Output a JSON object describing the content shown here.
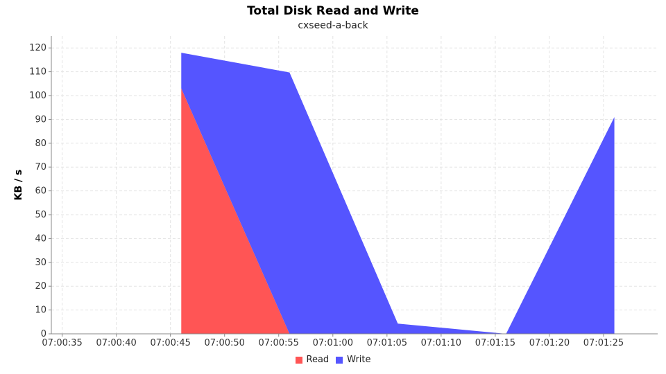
{
  "chart_data": {
    "type": "area",
    "stacked": true,
    "title": "Total Disk Read and Write",
    "subtitle": "cxseed-a-back",
    "xlabel": "",
    "ylabel": "KB / s",
    "ylim": [
      0,
      125
    ],
    "yticks": [
      0,
      10,
      20,
      30,
      40,
      50,
      60,
      70,
      80,
      90,
      100,
      110,
      120
    ],
    "xlim": [
      "07:00:34",
      "07:01:30"
    ],
    "xticks": [
      "07:00:35",
      "07:00:40",
      "07:00:45",
      "07:00:50",
      "07:00:55",
      "07:01:00",
      "07:01:05",
      "07:01:10",
      "07:01:15",
      "07:01:20",
      "07:01:25"
    ],
    "x": [
      "07:00:46",
      "07:00:56",
      "07:01:06",
      "07:01:16",
      "07:01:26"
    ],
    "series": [
      {
        "name": "Read",
        "color": "#FF5555",
        "values": [
          103,
          0,
          0,
          0,
          0
        ]
      },
      {
        "name": "Write",
        "color": "#5555FF",
        "values": [
          15,
          109.7,
          4.3,
          0,
          91
        ]
      }
    ],
    "grid": true,
    "legend_position": "bottom-center"
  }
}
